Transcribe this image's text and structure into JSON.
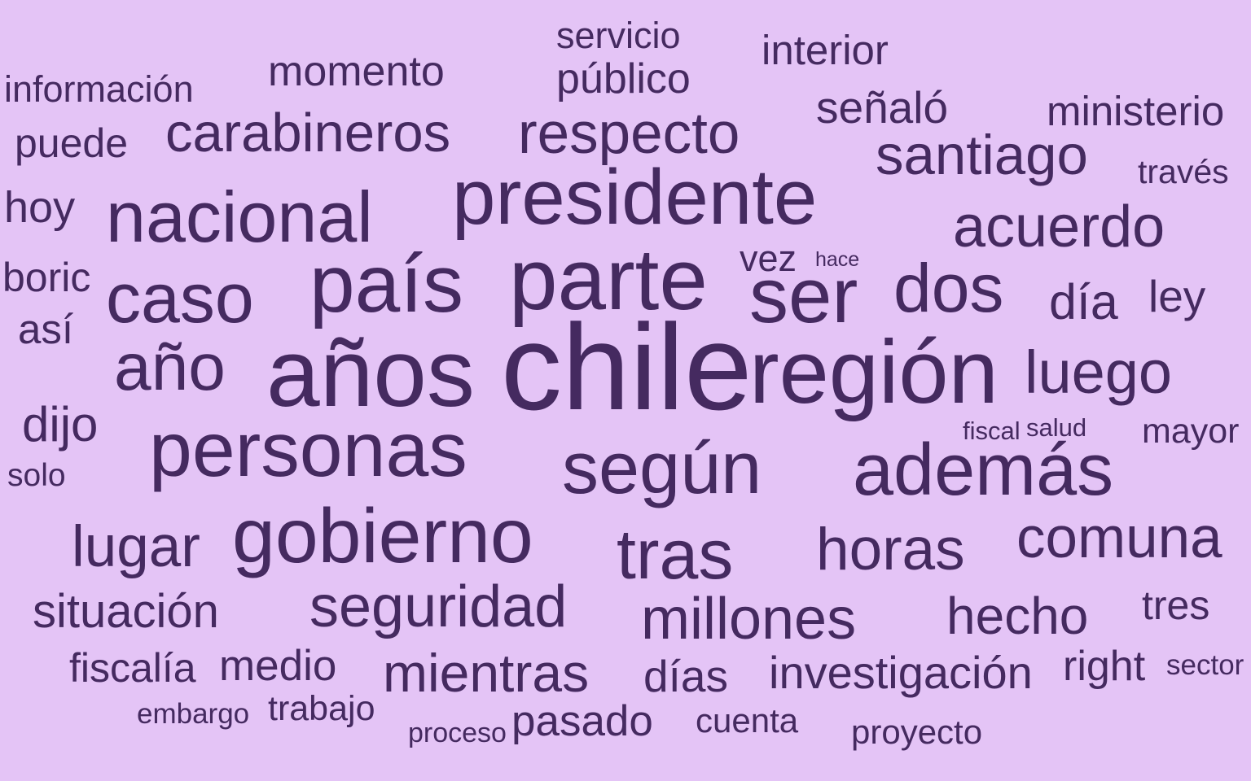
{
  "colors": {
    "background": "#e4c4f6",
    "word": "#452a60"
  },
  "words": [
    {
      "text": "chile",
      "weight": 1.0
    },
    {
      "text": "años",
      "weight": 0.92
    },
    {
      "text": "región",
      "weight": 0.88
    },
    {
      "text": "parte",
      "weight": 0.86
    },
    {
      "text": "país",
      "weight": 0.82
    },
    {
      "text": "ser",
      "weight": 0.8
    },
    {
      "text": "presidente",
      "weight": 0.8
    },
    {
      "text": "personas",
      "weight": 0.79
    },
    {
      "text": "gobierno",
      "weight": 0.79
    },
    {
      "text": "según",
      "weight": 0.76
    },
    {
      "text": "además",
      "weight": 0.76
    },
    {
      "text": "nacional",
      "weight": 0.74
    },
    {
      "text": "caso",
      "weight": 0.73
    },
    {
      "text": "tras",
      "weight": 0.73
    },
    {
      "text": "dos",
      "weight": 0.71
    },
    {
      "text": "año",
      "weight": 0.69
    },
    {
      "text": "luego",
      "weight": 0.64
    },
    {
      "text": "horas",
      "weight": 0.63
    },
    {
      "text": "seguridad",
      "weight": 0.62
    },
    {
      "text": "acuerdo",
      "weight": 0.61
    },
    {
      "text": "millones",
      "weight": 0.61
    },
    {
      "text": "lugar",
      "weight": 0.6
    },
    {
      "text": "comuna",
      "weight": 0.6
    },
    {
      "text": "respecto",
      "weight": 0.6
    },
    {
      "text": "santiago",
      "weight": 0.59
    },
    {
      "text": "carabineros",
      "weight": 0.57
    },
    {
      "text": "mientras",
      "weight": 0.56
    },
    {
      "text": "hecho",
      "weight": 0.55
    },
    {
      "text": "día",
      "weight": 0.53
    },
    {
      "text": "dijo",
      "weight": 0.52
    },
    {
      "text": "situación",
      "weight": 0.5
    },
    {
      "text": "investigación",
      "weight": 0.49
    },
    {
      "text": "días",
      "weight": 0.48
    },
    {
      "text": "ley",
      "weight": 0.47
    },
    {
      "text": "señaló",
      "weight": 0.47
    },
    {
      "text": "hoy",
      "weight": 0.46
    },
    {
      "text": "medio",
      "weight": 0.46
    },
    {
      "text": "pasado",
      "weight": 0.46
    },
    {
      "text": "right",
      "weight": 0.45
    },
    {
      "text": "momento",
      "weight": 0.45
    },
    {
      "text": "público",
      "weight": 0.45
    },
    {
      "text": "interior",
      "weight": 0.44
    },
    {
      "text": "ministerio",
      "weight": 0.44
    },
    {
      "text": "así",
      "weight": 0.44
    },
    {
      "text": "fiscalía",
      "weight": 0.43
    },
    {
      "text": "boric",
      "weight": 0.43
    },
    {
      "text": "tres",
      "weight": 0.43
    },
    {
      "text": "puede",
      "weight": 0.43
    },
    {
      "text": "vez",
      "weight": 0.39
    },
    {
      "text": "servicio",
      "weight": 0.39
    },
    {
      "text": "información",
      "weight": 0.39
    },
    {
      "text": "trabajo",
      "weight": 0.37
    },
    {
      "text": "mayor",
      "weight": 0.37
    },
    {
      "text": "cuenta",
      "weight": 0.36
    },
    {
      "text": "proyecto",
      "weight": 0.36
    },
    {
      "text": "través",
      "weight": 0.35
    },
    {
      "text": "solo",
      "weight": 0.34
    },
    {
      "text": "embargo",
      "weight": 0.31
    },
    {
      "text": "sector",
      "weight": 0.31
    },
    {
      "text": "proceso",
      "weight": 0.3
    },
    {
      "text": "fiscal",
      "weight": 0.27
    },
    {
      "text": "salud",
      "weight": 0.27
    },
    {
      "text": "hace",
      "weight": 0.22
    }
  ]
}
